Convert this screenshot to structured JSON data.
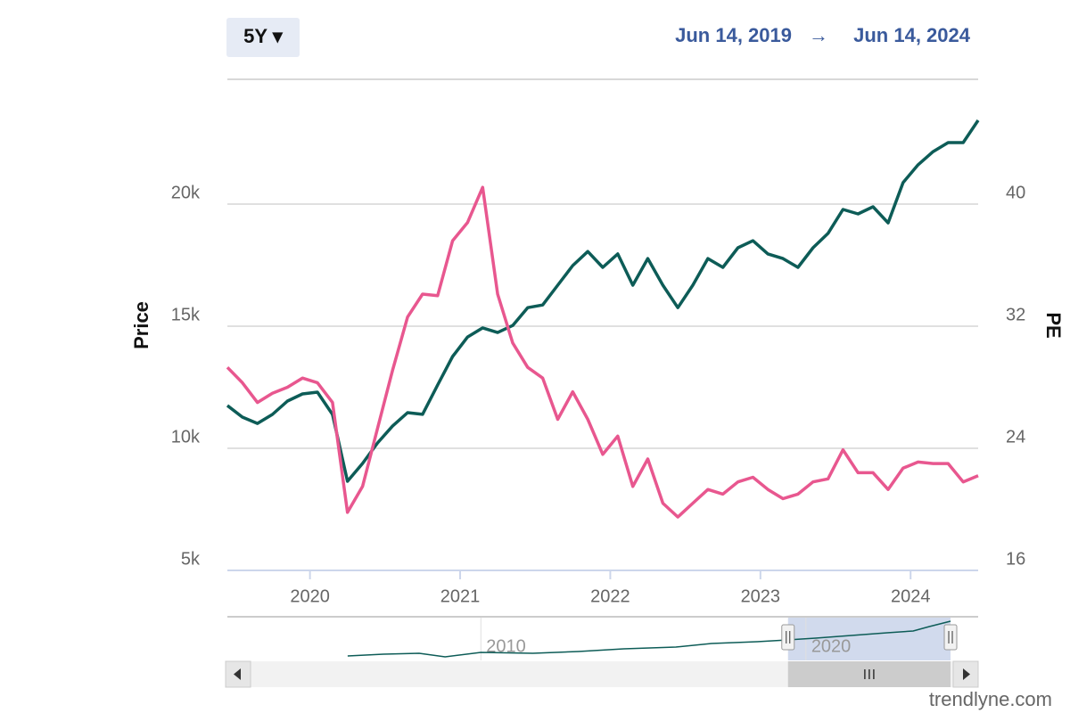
{
  "chart_data": {
    "type": "line",
    "range_button": "5Y ▾",
    "range_from": "Jun 14, 2019",
    "range_arrow": "→",
    "range_to": "Jun 14, 2024",
    "ylabel": "Price",
    "y2label": "PE",
    "watermark": "trendlyne.com",
    "xlim": [
      2019.45,
      2024.45
    ],
    "xticks": [
      2020,
      2021,
      2022,
      2023,
      2024
    ],
    "ylim": [
      5000,
      25000
    ],
    "yticks": [
      {
        "value": 5000,
        "label": "5k"
      },
      {
        "value": 10000,
        "label": "10k"
      },
      {
        "value": 15000,
        "label": "15k"
      },
      {
        "value": 20000,
        "label": "20k"
      }
    ],
    "y2lim": [
      16,
      48
    ],
    "y2ticks": [
      16,
      24,
      32,
      40
    ],
    "grid": true,
    "x": [
      2019.45,
      2019.55,
      2019.65,
      2019.75,
      2019.85,
      2019.95,
      2020.05,
      2020.15,
      2020.25,
      2020.35,
      2020.45,
      2020.55,
      2020.65,
      2020.75,
      2020.85,
      2020.95,
      2021.05,
      2021.15,
      2021.25,
      2021.35,
      2021.45,
      2021.55,
      2021.65,
      2021.75,
      2021.85,
      2021.95,
      2022.05,
      2022.15,
      2022.25,
      2022.35,
      2022.45,
      2022.55,
      2022.65,
      2022.75,
      2022.85,
      2022.95,
      2023.05,
      2023.15,
      2023.25,
      2023.35,
      2023.45,
      2023.55,
      2023.65,
      2023.75,
      2023.85,
      2023.95,
      2024.05,
      2024.15,
      2024.25,
      2024.35,
      2024.45
    ],
    "series": [
      {
        "color": "#0d5c57",
        "values": [
          11750,
          11276,
          11020,
          11386,
          11934,
          12225,
          12300,
          11386,
          8650,
          9380,
          10220,
          10910,
          11460,
          11390,
          12590,
          13760,
          14560,
          14930,
          14740,
          15030,
          15760,
          15870,
          16680,
          17480,
          18060,
          17410,
          17960,
          16680,
          17770,
          16680,
          15760,
          16680,
          17770,
          17410,
          18210,
          18500,
          17960,
          17770,
          17410,
          18210,
          18800,
          19780,
          19600,
          19890,
          19230,
          20880,
          21610,
          22150,
          22520,
          22520,
          23430
        ]
      },
      {
        "color": "#e8578f",
        "axis": "y2",
        "values": [
          29.3,
          28.3,
          27.0,
          27.6,
          28.0,
          28.6,
          28.3,
          27.0,
          19.8,
          21.5,
          25.3,
          29.1,
          32.6,
          34.1,
          34.0,
          37.6,
          38.8,
          41.1,
          34.1,
          30.9,
          29.3,
          28.6,
          25.9,
          27.7,
          25.9,
          23.6,
          24.8,
          21.5,
          23.3,
          20.4,
          19.5,
          20.4,
          21.3,
          21.0,
          21.8,
          22.1,
          21.3,
          20.7,
          21.0,
          21.8,
          22.0,
          23.9,
          22.4,
          22.4,
          21.3,
          22.7,
          23.1,
          23.0,
          23.0,
          21.8,
          22.2
        ]
      }
    ],
    "navigator": {
      "xlim": [
        2002.2,
        2025.3
      ],
      "xticks": [
        2010,
        2020
      ],
      "ylim": [
        0,
        24000
      ],
      "color": "#0d5c57",
      "x": [
        2005.9,
        2007.0,
        2008.1,
        2008.9,
        2010.0,
        2011.6,
        2013.0,
        2014.4,
        2016.0,
        2017.1,
        2018.5,
        2019.45,
        2020.3,
        2021.4,
        2022.5,
        2023.3,
        2023.8,
        2024.45
      ],
      "values": [
        2600,
        3650,
        4170,
        2090,
        4700,
        4170,
        5220,
        6780,
        7830,
        9910,
        10960,
        12000,
        13040,
        14610,
        16170,
        17220,
        19830,
        22950
      ]
    }
  }
}
